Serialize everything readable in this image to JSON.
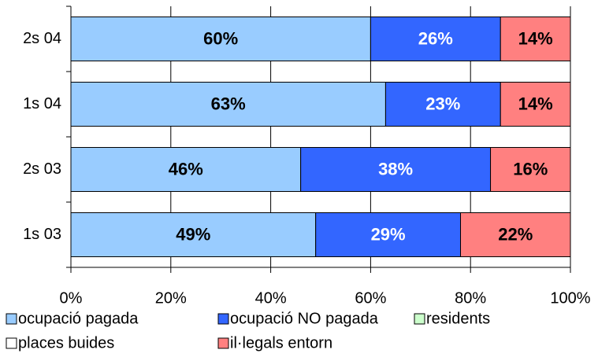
{
  "chart_data": {
    "type": "bar",
    "orientation": "horizontal",
    "stacked": true,
    "categories": [
      "2s 04",
      "1s 04",
      "2s 03",
      "1s 03"
    ],
    "series": [
      {
        "name": "ocupació pagada",
        "color": "#99ccff",
        "values": [
          60,
          63,
          46,
          49
        ],
        "value_labels": [
          "60%",
          "63%",
          "46%",
          "49%"
        ]
      },
      {
        "name": "ocupació NO pagada",
        "color": "#3366ff",
        "values": [
          26,
          23,
          38,
          29
        ],
        "value_labels": [
          "26%",
          "23%",
          "38%",
          "29%"
        ]
      },
      {
        "name": "residents",
        "color": "#ccffcc",
        "values": [
          0,
          0,
          0,
          0
        ]
      },
      {
        "name": "places buides",
        "color": "#ffffff",
        "values": [
          0,
          0,
          0,
          0
        ]
      },
      {
        "name": "il·legals entorn",
        "color": "#ff8080",
        "values": [
          14,
          14,
          16,
          22
        ],
        "value_labels": [
          "14%",
          "14%",
          "16%",
          "22%"
        ]
      }
    ],
    "xlim": [
      0,
      100
    ],
    "xticks": [
      {
        "value": 0,
        "label": "0%"
      },
      {
        "value": 20,
        "label": "20%"
      },
      {
        "value": 40,
        "label": "40%"
      },
      {
        "value": 60,
        "label": "60%"
      },
      {
        "value": 80,
        "label": "80%"
      },
      {
        "value": 100,
        "label": "100%"
      }
    ],
    "grid": true
  }
}
